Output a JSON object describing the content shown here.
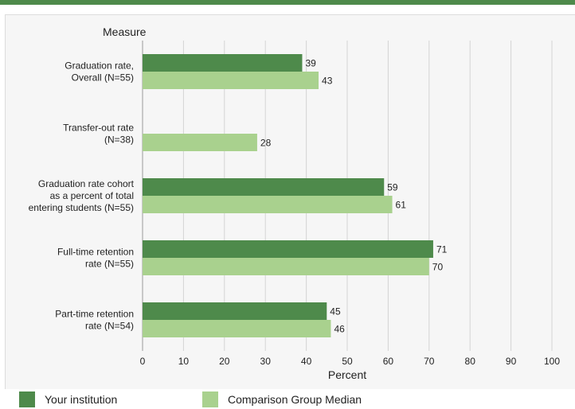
{
  "colors": {
    "top_bar": "#4e8a4b",
    "institution": "#4e8a4b",
    "comparison": "#a9d18e",
    "panel_bg": "#f6f6f6",
    "grid": "#d4d4d4",
    "axis": "#9a9a9a",
    "text": "#222222"
  },
  "legend": {
    "institution_label": "Your institution",
    "comparison_label": "Comparison Group Median"
  },
  "chart_data": {
    "type": "bar",
    "orientation": "horizontal",
    "ylabel": "Measure",
    "xlabel": "Percent",
    "xlim": [
      0,
      100
    ],
    "xticks": [
      0,
      10,
      20,
      30,
      40,
      50,
      60,
      70,
      80,
      90,
      100
    ],
    "grid": true,
    "legend_position": "bottom",
    "categories": [
      [
        "Graduation rate,",
        "Overall (N=55)"
      ],
      [
        "Transfer-out rate",
        "(N=38)"
      ],
      [
        "Graduation rate cohort",
        "as a percent of total",
        "entering students (N=55)"
      ],
      [
        "Full-time retention",
        "rate (N=55)"
      ],
      [
        "Part-time retention",
        "rate (N=54)"
      ]
    ],
    "series": [
      {
        "name": "Your institution",
        "values": [
          39,
          null,
          59,
          71,
          45
        ]
      },
      {
        "name": "Comparison Group Median",
        "values": [
          43,
          28,
          61,
          70,
          46
        ]
      }
    ]
  }
}
